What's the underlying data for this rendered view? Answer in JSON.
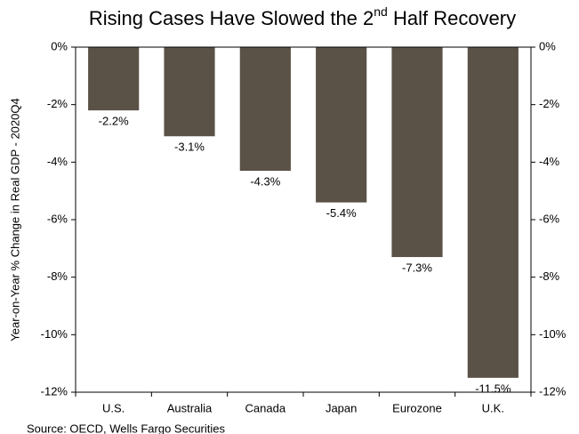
{
  "chart_data": {
    "type": "bar",
    "title": [
      "Rising Cases Have Slowed the 2",
      "nd",
      " Half Recovery"
    ],
    "y_label": "Year-on-Year % Change in Real GDP - 2020Q4",
    "source": "Source: OECD, Wells Fargo Securities",
    "categories": [
      "U.S.",
      "Australia",
      "Canada",
      "Japan",
      "Eurozone",
      "U.K."
    ],
    "values": [
      -2.2,
      -3.1,
      -4.3,
      -5.4,
      -7.3,
      -11.5
    ],
    "value_labels": [
      "-2.2%",
      "-3.1%",
      "-4.3%",
      "-5.4%",
      "-7.3%",
      "-11.5%"
    ],
    "color": "#5b5247",
    "ylim": [
      -12,
      0
    ],
    "yticks": [
      {
        "value": 0,
        "label": "0%"
      },
      {
        "value": -2,
        "label": "-2%"
      },
      {
        "value": -4,
        "label": "-4%"
      },
      {
        "value": -6,
        "label": "-6%"
      },
      {
        "value": -8,
        "label": "-8%"
      },
      {
        "value": -10,
        "label": "-10%"
      },
      {
        "value": -12,
        "label": "-12%"
      }
    ],
    "y2lim": [
      -12,
      0
    ],
    "y2ticks": [
      {
        "value": 0,
        "label": "0%"
      },
      {
        "value": -2,
        "label": "-2%"
      },
      {
        "value": -4,
        "label": "-4%"
      },
      {
        "value": -6,
        "label": "-6%"
      },
      {
        "value": -8,
        "label": "-8%"
      },
      {
        "value": -10,
        "label": "-10%"
      },
      {
        "value": -12,
        "label": "-12%"
      }
    ]
  }
}
